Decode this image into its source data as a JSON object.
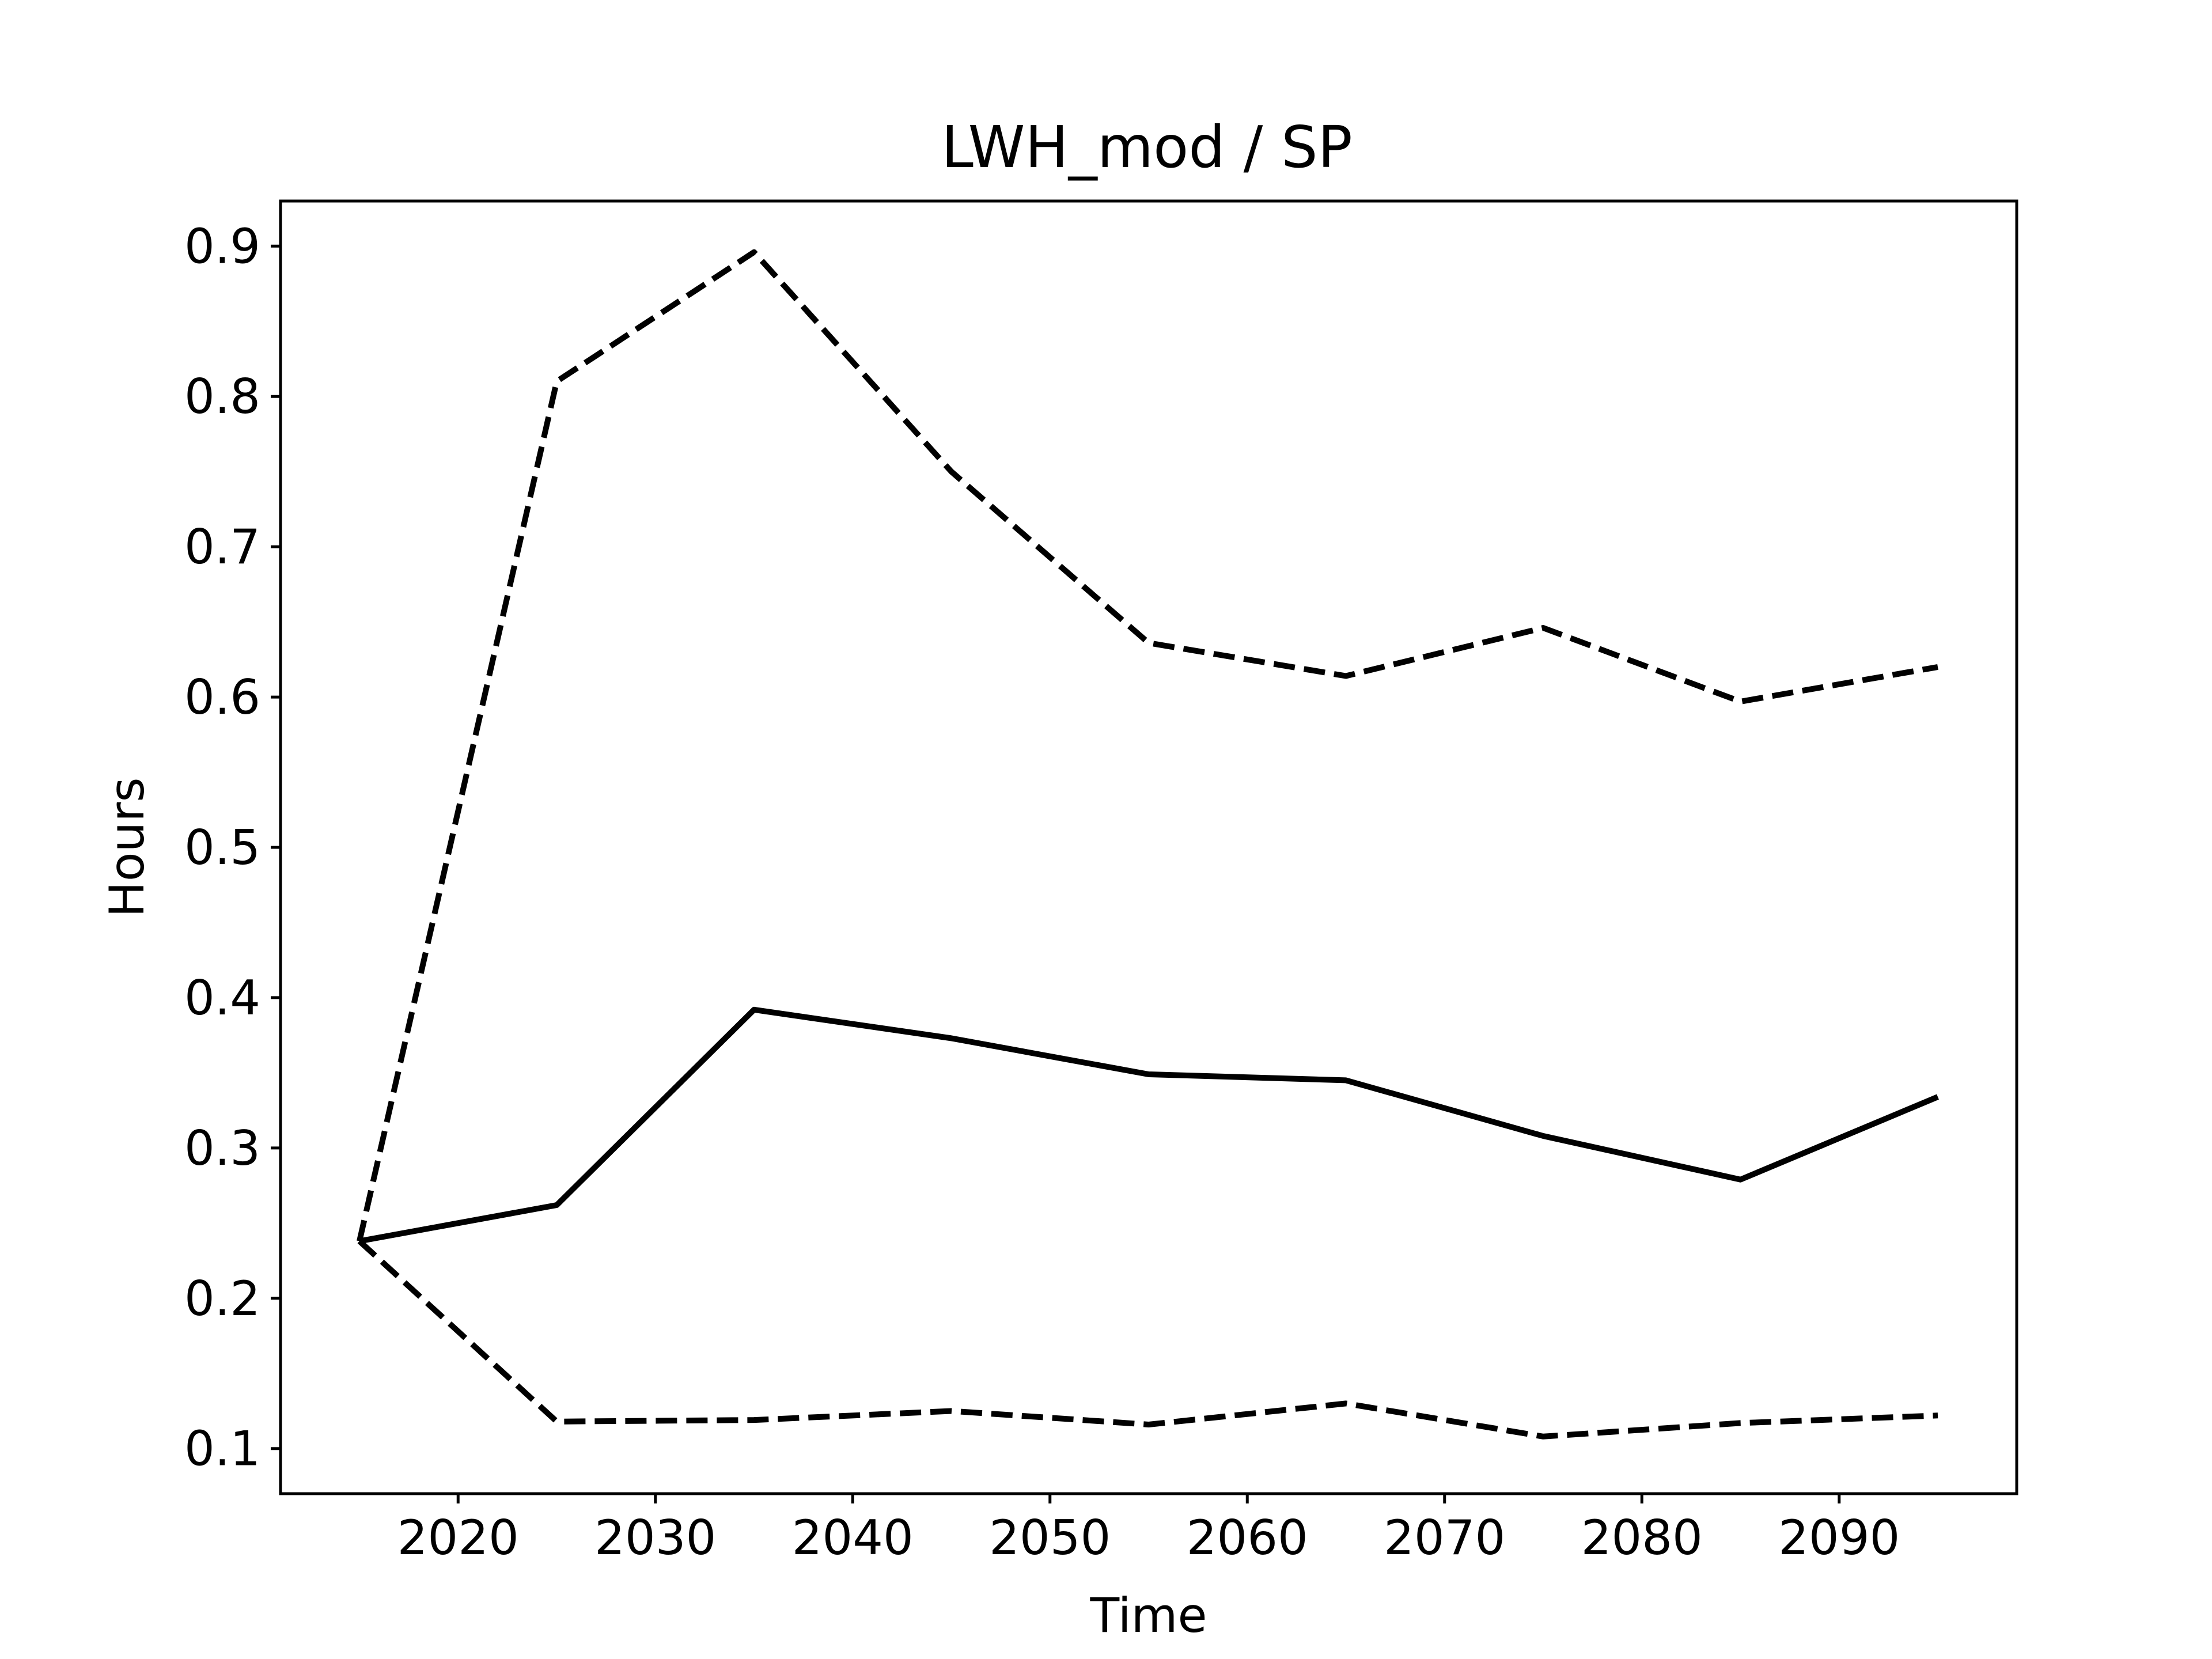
{
  "chart_data": {
    "type": "line",
    "title": "LWH_mod / SP",
    "xlabel": "Time",
    "ylabel": "Hours",
    "xlim": [
      2011,
      2099
    ],
    "ylim": [
      0.07,
      0.93
    ],
    "xticks": [
      2020,
      2030,
      2040,
      2050,
      2060,
      2070,
      2080,
      2090
    ],
    "xtick_labels": [
      "2020",
      "2030",
      "2040",
      "2050",
      "2060",
      "2070",
      "2080",
      "2090"
    ],
    "yticks": [
      0.1,
      0.2,
      0.3,
      0.4,
      0.5,
      0.6,
      0.7,
      0.8,
      0.9
    ],
    "ytick_labels": [
      "0.1",
      "0.2",
      "0.3",
      "0.4",
      "0.5",
      "0.6",
      "0.7",
      "0.8",
      "0.9"
    ],
    "grid": false,
    "legend": "none",
    "x": [
      2015,
      2025,
      2035,
      2045,
      2055,
      2065,
      2075,
      2085,
      2095
    ],
    "series": [
      {
        "style": "solid",
        "color": "#000000",
        "values": [
          0.238,
          0.262,
          0.392,
          0.373,
          0.349,
          0.345,
          0.308,
          0.279,
          0.334
        ]
      },
      {
        "style": "dashed",
        "color": "#000000",
        "values": [
          0.238,
          0.81,
          0.896,
          0.75,
          0.636,
          0.614,
          0.646,
          0.597,
          0.62
        ]
      },
      {
        "style": "dashed",
        "color": "#000000",
        "values": [
          0.238,
          0.118,
          0.119,
          0.125,
          0.116,
          0.13,
          0.108,
          0.117,
          0.122
        ]
      }
    ]
  }
}
